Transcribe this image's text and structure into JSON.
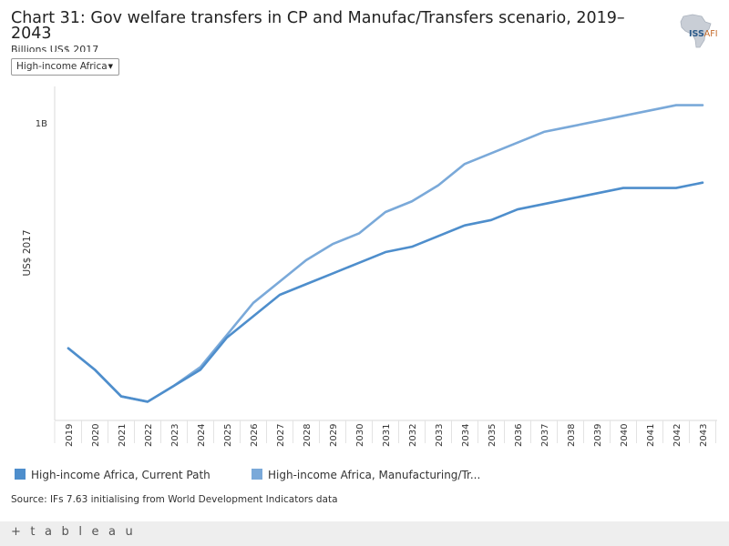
{
  "header": {
    "title": "Chart 31: Gov welfare transfers in CP and Manufac/Transfers scenario, 2019–2043",
    "subtitle": "Billions US$ 2017",
    "logo_text_primary": "ISS",
    "logo_text_secondary": "AFI"
  },
  "filter": {
    "selected": "High-income Africa",
    "arrow": "▼"
  },
  "chart_data": {
    "type": "line",
    "title": "Chart 31: Gov welfare transfers in CP and Manufac/Transfers scenario, 2019–2043",
    "xlabel": "",
    "ylabel": "US$ 2017",
    "y_tick_labels": [
      "1B"
    ],
    "ylim": [
      0.445,
      1.07
    ],
    "x": [
      2019,
      2020,
      2021,
      2022,
      2023,
      2024,
      2025,
      2026,
      2027,
      2028,
      2029,
      2030,
      2031,
      2032,
      2033,
      2034,
      2035,
      2036,
      2037,
      2038,
      2039,
      2040,
      2041,
      2042,
      2043
    ],
    "series": [
      {
        "name": "High-income Africa, Current Path",
        "color": "#4e8ecc",
        "values": [
          0.58,
          0.54,
          0.49,
          0.48,
          0.51,
          0.54,
          0.6,
          0.64,
          0.68,
          0.7,
          0.72,
          0.74,
          0.76,
          0.77,
          0.79,
          0.81,
          0.82,
          0.84,
          0.85,
          0.86,
          0.87,
          0.88,
          0.88,
          0.88,
          0.89
        ]
      },
      {
        "name": "High-income Africa, Manufacturing/Transfers",
        "color": "#7aa9d9",
        "values": [
          0.58,
          0.54,
          0.49,
          0.48,
          0.51,
          0.545,
          0.605,
          0.665,
          0.705,
          0.745,
          0.775,
          0.795,
          0.835,
          0.855,
          0.885,
          0.925,
          0.945,
          0.965,
          0.985,
          0.995,
          1.005,
          1.015,
          1.025,
          1.035,
          1.035
        ]
      }
    ]
  },
  "legend": {
    "items": [
      {
        "label": "High-income Africa, Current Path",
        "color": "#4e8ecc"
      },
      {
        "label": "High-income Africa, Manufacturing/Tr...",
        "color": "#7aa9d9"
      }
    ]
  },
  "source": "Source: IFs 7.63 initialising from World Development Indicators data",
  "footer": {
    "brand": "+ t a b l e a u"
  }
}
